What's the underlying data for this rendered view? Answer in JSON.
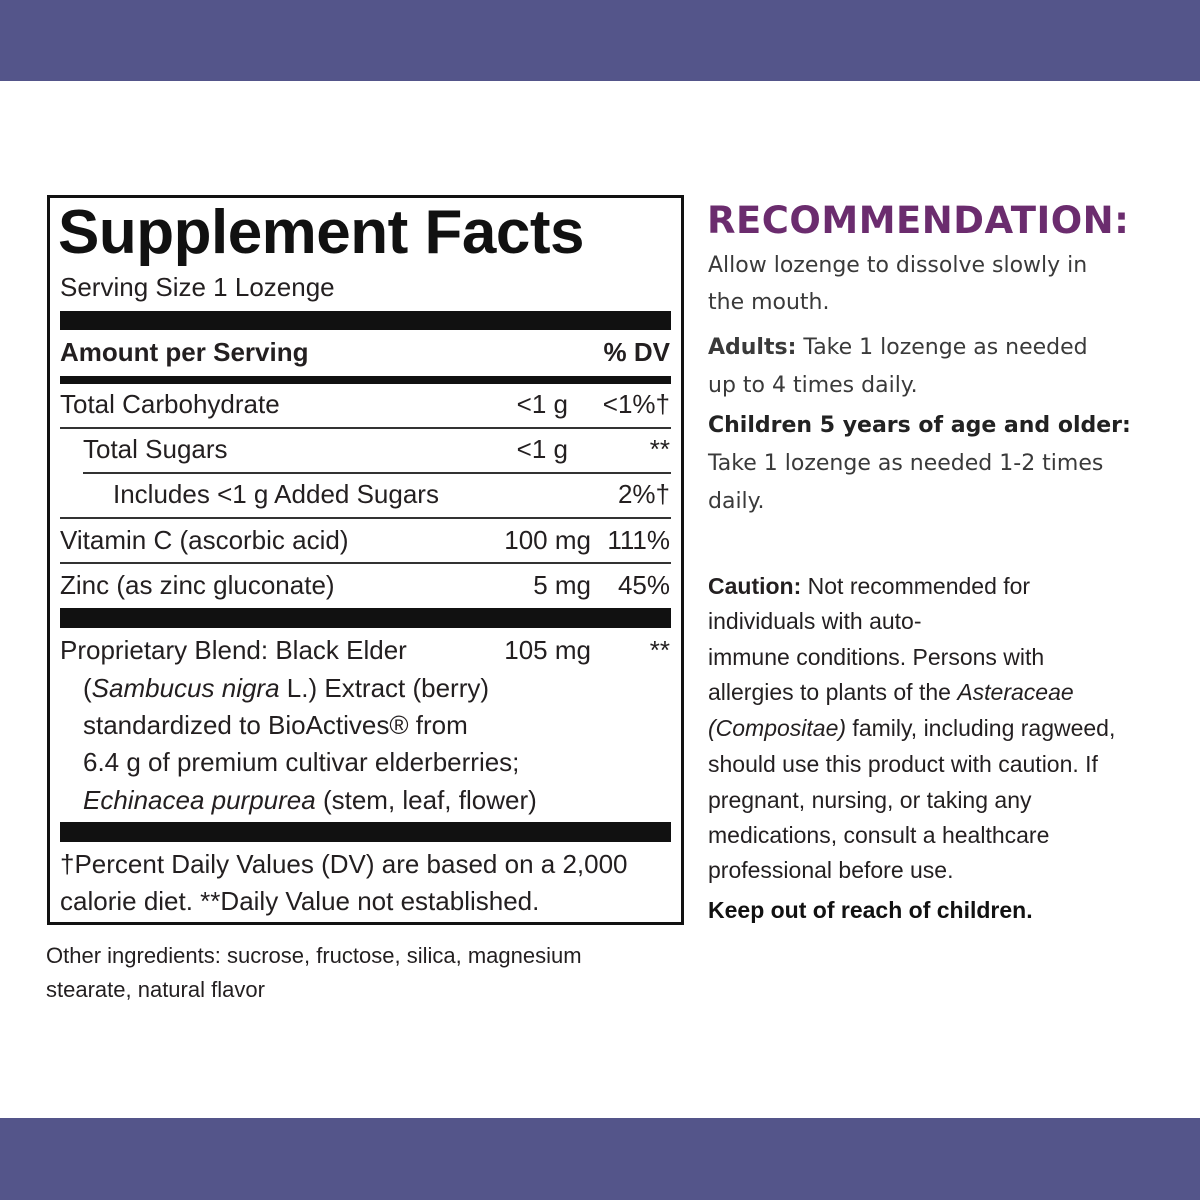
{
  "facts": {
    "title": "Supplement Facts",
    "serving": "Serving Size 1 Lozenge",
    "amount_header": "Amount per Serving",
    "dv_header": "% DV",
    "rows": [
      {
        "name": "Total Carbohydrate",
        "amount": "<1 g",
        "dv": "<1%†"
      },
      {
        "name": "Total Sugars",
        "amount": "<1 g",
        "dv": "**"
      },
      {
        "name": "Includes <1 g Added Sugars",
        "dv": "2%†"
      },
      {
        "name": "Vitamin C (ascorbic acid)",
        "amount": "100 mg",
        "dv": "111%"
      },
      {
        "name": "Zinc (as zinc gluconate)",
        "amount": "5 mg",
        "dv": "45%"
      }
    ],
    "blend": {
      "lines": [
        [
          "Proprietary Blend: Black Elder"
        ],
        [
          "(",
          "Sambucus nigra",
          " L.) Extract (berry)"
        ],
        [
          "standardized to BioActives® from"
        ],
        [
          "6.4 g of premium cultivar elderberries;"
        ],
        [
          "Echinacea purpurea",
          " (stem, leaf, flower)"
        ]
      ],
      "amount": "105 mg",
      "dv": "**"
    },
    "footnote": [
      "†Percent Daily Values (DV) are based on a 2,000",
      "calorie diet. **Daily Value not established."
    ]
  },
  "other_ingredients": [
    "Other ingredients: sucrose, fructose, silica, magnesium",
    "stearate, natural flavor"
  ],
  "recommendation": {
    "title": "RECOMMENDATION:",
    "intro": [
      "Allow lozenge to dissolve slowly in",
      "the mouth."
    ],
    "adults": {
      "label": "Adults:",
      "lines": [
        "Take 1 lozenge as needed",
        "up to 4 times daily."
      ]
    },
    "children": {
      "label": "Children 5 years of age and older:",
      "lines": [
        "Take 1 lozenge as needed 1-2 times",
        "daily."
      ]
    }
  },
  "caution": {
    "label": "Caution:",
    "lines": [
      [
        "Not recommended for"
      ],
      [
        "individuals with auto-"
      ],
      [
        "immune conditions. Persons with"
      ],
      [
        "allergies to plants of the ",
        "Asteraceae"
      ],
      [
        "(Compositae)",
        " family, including ragweed,"
      ],
      [
        "should use this product with caution. If"
      ],
      [
        "pregnant, nursing, or taking any"
      ],
      [
        "medications, consult a healthcare"
      ],
      [
        "professional before use."
      ]
    ],
    "warning": "Keep out of reach of children."
  }
}
